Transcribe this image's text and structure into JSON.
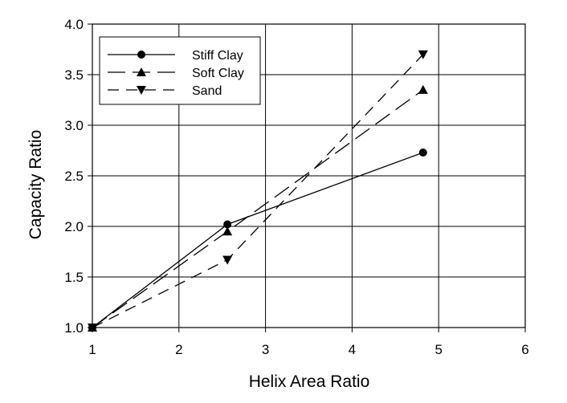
{
  "chart_data": {
    "type": "line",
    "xlabel": "Helix Area Ratio",
    "ylabel": "Capacity Ratio",
    "xlim": [
      1,
      6
    ],
    "ylim": [
      1.0,
      4.0
    ],
    "x_ticks": [
      "1",
      "2",
      "3",
      "4",
      "5",
      "6"
    ],
    "y_ticks": [
      "1.0",
      "1.5",
      "2.0",
      "2.5",
      "3.0",
      "3.5",
      "4.0"
    ],
    "grid": true,
    "legend_position": "top-left",
    "series": [
      {
        "name": "Stiff Clay",
        "marker": "circle",
        "line_style": "solid",
        "x": [
          1,
          2.56,
          4.82
        ],
        "y": [
          1.0,
          2.02,
          2.73
        ]
      },
      {
        "name": "Soft Clay",
        "marker": "triangle-up",
        "line_style": "long-dash",
        "x": [
          1,
          2.56,
          4.82
        ],
        "y": [
          1.0,
          1.95,
          3.35
        ]
      },
      {
        "name": "Sand",
        "marker": "triangle-down",
        "line_style": "dash",
        "x": [
          1,
          2.56,
          4.82
        ],
        "y": [
          1.0,
          1.67,
          3.7
        ]
      }
    ]
  }
}
